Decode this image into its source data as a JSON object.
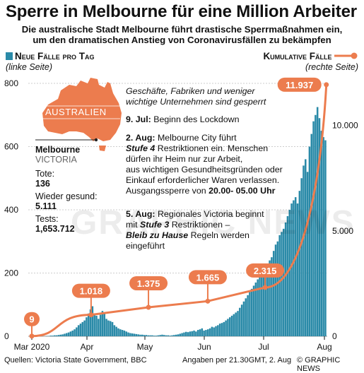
{
  "header": {
    "title": "Sperre in Melbourne für eine Million Arbeiter",
    "subtitle_line1": "Die australische Stadt Melbourne führt drastische Sperrmaßnahmen ein,",
    "subtitle_line2": "um den dramatischen Anstieg von Coronavirusfällen zu bekämpfen"
  },
  "legend": {
    "left_title": "Neue Fälle pro Tag",
    "left_sub": "(linke Seite)",
    "right_title": "Kumulative Fälle",
    "right_sub": "(rechte Seite)"
  },
  "map": {
    "country_label": "AUSTRALIEN",
    "city": "Melbourne",
    "state": "VICTORIA"
  },
  "stats": {
    "tote_label": "Tote:",
    "tote_value": "136",
    "recovered_label": "Wieder gesund:",
    "recovered_value": "5.111",
    "tests_label": "Tests:",
    "tests_value": "1,653.712"
  },
  "annotations": {
    "top_note_1": "Geschäfte, Fabriken und weniger",
    "top_note_2": "wichtige Unternehmen sind gesperrt",
    "jul9_date": "9. Jul:",
    "jul9_text": " Beginn des Lockdown",
    "aug2_date": "2. Aug:",
    "aug2_l1": " Melbourne City führt",
    "aug2_l2a": "Stufe 4",
    "aug2_l2b": " Restriktionen ein. Menschen",
    "aug2_l3": "dürfen ihr Heim nur zur Arbeit,",
    "aug2_l4": "aus wichtigen Gesundheitsgründen oder",
    "aug2_l5": "Einkauf erforderlicher Waren verlassen.",
    "aug2_l6a": "Ausgangssperre von ",
    "aug2_l6b": "20.00- 05.00 Uhr",
    "aug5_date": "5. Aug:",
    "aug5_l1": " Regionales Victoria beginnt",
    "aug5_l2a": "mit ",
    "aug5_l2b": "Stufe 3",
    "aug5_l2c": " Restriktionen –",
    "aug5_l3a": "Bleib zu Hause",
    "aug5_l3b": " Regeln werden",
    "aug5_l4": "eingeführt"
  },
  "footer": {
    "source": "Quellen: Victoria State Government, BBC",
    "date_note": "Angaben per 21.30GMT, 2. Aug",
    "credit": "© GRAPHIC NEWS"
  },
  "watermark": "GRAPHIC NEWS",
  "colors": {
    "bars": "#2a8aa8",
    "cumulative_line": "#ec7c4e",
    "grid": "#999999"
  },
  "chart_data": {
    "type": "bar",
    "x_tick_labels": [
      "Mar 2020",
      "Apr",
      "May",
      "Jun",
      "Jul",
      "Aug"
    ],
    "left_axis": {
      "ticks": [
        "0",
        "200",
        "400",
        "600",
        "800"
      ],
      "range": [
        0,
        800
      ]
    },
    "right_axis": {
      "ticks": [
        "0",
        "5.000",
        "10.000"
      ],
      "range": [
        0,
        12000
      ]
    },
    "series": [
      {
        "name": "Neue Fälle pro Tag",
        "kind": "bar",
        "axis": "left",
        "values": [
          0,
          1,
          1,
          2,
          2,
          3,
          3,
          4,
          5,
          6,
          8,
          10,
          12,
          15,
          18,
          22,
          28,
          35,
          40,
          45,
          50,
          60,
          72,
          85,
          95,
          70,
          65,
          55,
          68,
          80,
          75,
          55,
          50,
          48,
          45,
          35,
          30,
          25,
          22,
          20,
          18,
          15,
          12,
          10,
          9,
          8,
          7,
          6,
          5,
          5,
          4,
          4,
          3,
          3,
          3,
          2,
          2,
          3,
          4,
          5,
          4,
          3,
          3,
          2,
          3,
          4,
          5,
          6,
          8,
          10,
          12,
          14,
          13,
          15,
          16,
          18,
          15,
          20,
          22,
          25,
          18,
          20,
          22,
          25,
          30,
          28,
          32,
          35,
          40,
          42,
          45,
          50,
          55,
          60,
          65,
          70,
          75,
          80,
          90,
          100,
          110,
          120,
          130,
          140,
          150,
          160,
          170,
          180,
          190,
          200,
          210,
          220,
          230,
          240,
          250,
          270,
          290,
          300,
          320,
          330,
          340,
          360,
          380,
          400,
          420,
          430,
          440,
          420,
          460,
          500,
          540,
          560,
          520,
          600,
          640,
          680,
          700,
          725,
          690,
          650,
          630,
          620
        ]
      },
      {
        "name": "Kumulative Fälle",
        "kind": "line",
        "axis": "right",
        "labeled_points": [
          {
            "date": "2020-03-01",
            "value": 9,
            "label": "9"
          },
          {
            "date": "2020-04-01",
            "value": 1018,
            "label": "1.018"
          },
          {
            "date": "2020-05-01",
            "value": 1375,
            "label": "1.375"
          },
          {
            "date": "2020-06-01",
            "value": 1665,
            "label": "1.665"
          },
          {
            "date": "2020-07-01",
            "value": 2315,
            "label": "2.315"
          },
          {
            "date": "2020-08-02",
            "value": 11937,
            "label": "11.937"
          }
        ]
      }
    ]
  }
}
